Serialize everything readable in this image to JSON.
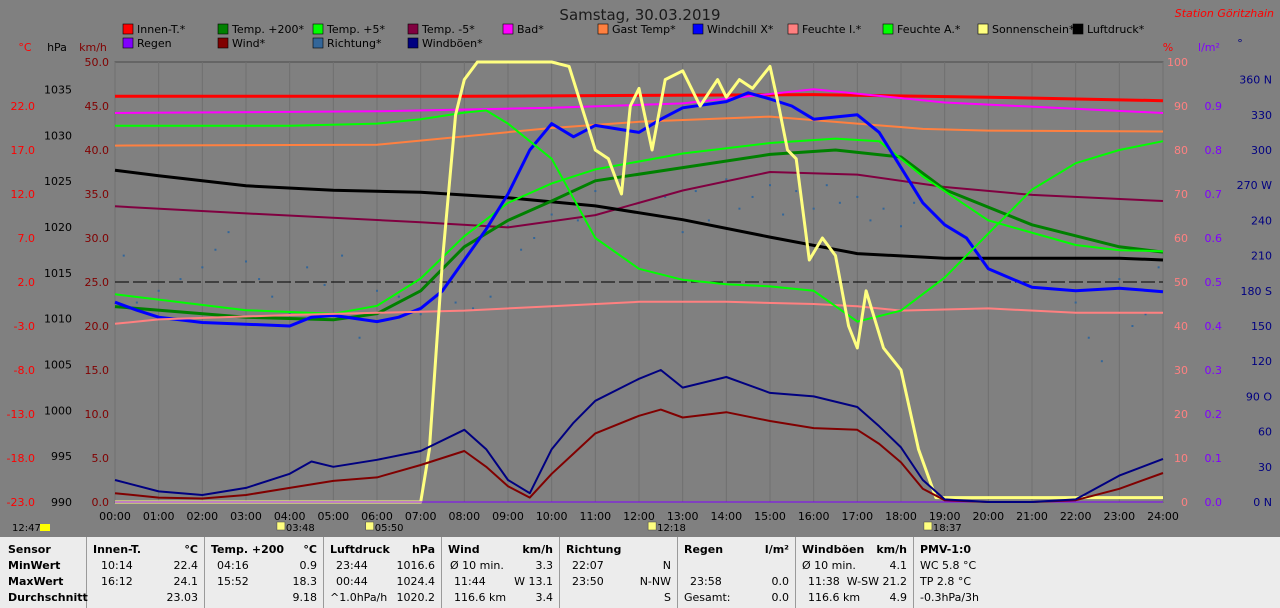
{
  "title": "Samstag, 30.03.2019",
  "station": "Station Göritzhain",
  "legend": [
    {
      "label": "Innen-T.*",
      "color": "#ff0000"
    },
    {
      "label": "Temp. +200*",
      "color": "#008000"
    },
    {
      "label": "Temp. +5*",
      "color": "#00ff00"
    },
    {
      "label": "Temp. -5*",
      "color": "#800040"
    },
    {
      "label": "Bad*",
      "color": "#ff00ff"
    },
    {
      "label": "Gast Temp*",
      "color": "#ff8040"
    },
    {
      "label": "Windchill X*",
      "color": "#0000ff"
    },
    {
      "label": "Feuchte I.*",
      "color": "#ff8080"
    },
    {
      "label": "Feuchte A.*",
      "color": "#00ff00"
    },
    {
      "label": "Sonnenschein*",
      "color": "#ffff80"
    },
    {
      "label": "Luftdruck*",
      "color": "#000000"
    },
    {
      "label": "Regen",
      "color": "#8000ff"
    },
    {
      "label": "Wind*",
      "color": "#800000"
    },
    {
      "label": "Richtung*",
      "color": "#336699"
    },
    {
      "label": "Windböen*",
      "color": "#000080"
    }
  ],
  "axis_units": {
    "temp": "°C",
    "pressure": "hPa",
    "speed": "km/h",
    "humidity": "%",
    "rain": "l/m²",
    "direction": "°"
  },
  "sun_times": [
    {
      "time": "03:48"
    },
    {
      "time": "05:50"
    },
    {
      "time": "12:18"
    },
    {
      "time": "18:37"
    }
  ],
  "clock": "12:47",
  "colors": {
    "background": "#808080",
    "plot": "#808080",
    "sun": "#ffff80",
    "panel": "#ececec"
  },
  "chart_data": {
    "type": "line",
    "title": "Samstag, 30.03.2019",
    "x_ticks": [
      "00:00",
      "01:00",
      "02:00",
      "03:00",
      "04:00",
      "05:00",
      "06:00",
      "07:00",
      "08:00",
      "09:00",
      "10:00",
      "11:00",
      "12:00",
      "13:00",
      "14:00",
      "15:00",
      "16:00",
      "17:00",
      "18:00",
      "19:00",
      "20:00",
      "21:00",
      "22:00",
      "23:00",
      "24:00"
    ],
    "xlim": [
      0,
      24
    ],
    "y_axes": {
      "temp": {
        "unit": "°C",
        "lim": [
          -23,
          27
        ],
        "ticks": [
          "22.0",
          "17.0",
          "12.0",
          "7.0",
          "2.0",
          "-3.0",
          "-8.0",
          "-13.0",
          "-18.0",
          "-23.0"
        ]
      },
      "pressure": {
        "unit": "hPa",
        "lim": [
          990,
          1038
        ],
        "ticks": [
          "1035",
          "1030",
          "1025",
          "1020",
          "1015",
          "1010",
          "1005",
          "1000",
          "995",
          "990"
        ]
      },
      "speed": {
        "unit": "km/h",
        "lim": [
          0,
          50
        ],
        "ticks": [
          "50.0",
          "45.0",
          "40.0",
          "35.0",
          "30.0",
          "25.0",
          "20.0",
          "15.0",
          "10.0",
          "5.0",
          "0.0"
        ]
      },
      "humidity": {
        "unit": "%",
        "lim": [
          0,
          100
        ],
        "ticks": [
          "100",
          "90",
          "80",
          "70",
          "60",
          "50",
          "40",
          "30",
          "20",
          "10",
          "0"
        ]
      },
      "rain": {
        "unit": "l/m²",
        "lim": [
          0,
          1
        ],
        "ticks": [
          "0.9",
          "0.8",
          "0.7",
          "0.6",
          "0.5",
          "0.4",
          "0.3",
          "0.2",
          "0.1",
          "0.0"
        ]
      },
      "direction": {
        "unit": "°",
        "lim": [
          0,
          375
        ],
        "ticks": [
          "360 N",
          "330",
          "300",
          "270 W",
          "240",
          "210",
          "180 S",
          "150",
          "120",
          "90 O",
          "60",
          "30",
          "0 N"
        ]
      }
    },
    "series": [
      {
        "name": "Innen-T.*",
        "axis": "temp",
        "color": "#ff0000",
        "width": 3,
        "x": [
          0,
          4,
          8,
          12,
          16,
          20,
          24
        ],
        "y": [
          23.1,
          23.1,
          23.1,
          23.2,
          23.3,
          23.0,
          22.6
        ]
      },
      {
        "name": "Bad*",
        "axis": "temp",
        "color": "#ff00ff",
        "width": 2,
        "x": [
          0,
          6,
          10,
          13,
          16,
          19,
          24
        ],
        "y": [
          21.2,
          21.4,
          21.8,
          22.3,
          23.9,
          22.4,
          21.2
        ]
      },
      {
        "name": "Gast Temp*",
        "axis": "temp",
        "color": "#ff8040",
        "width": 2,
        "x": [
          0,
          6,
          10,
          12,
          15,
          17,
          18.5,
          20,
          24
        ],
        "y": [
          17.5,
          17.6,
          19.5,
          20.2,
          20.8,
          20.0,
          19.4,
          19.2,
          19.1
        ]
      },
      {
        "name": "Temp. -5*",
        "axis": "temp",
        "color": "#800040",
        "width": 2,
        "x": [
          0,
          3,
          7,
          9,
          11,
          13,
          15,
          17,
          19,
          21,
          24
        ],
        "y": [
          10.6,
          9.8,
          8.8,
          8.2,
          9.6,
          12.4,
          14.5,
          14.2,
          12.8,
          11.9,
          11.2
        ]
      },
      {
        "name": "Luftdruck*",
        "axis": "pressure",
        "color": "#000000",
        "width": 3,
        "x": [
          0,
          1,
          3,
          5,
          7,
          9,
          11,
          13,
          15,
          17,
          19,
          21,
          23,
          24
        ],
        "y": [
          1026.2,
          1025.6,
          1024.5,
          1024.0,
          1023.8,
          1023.2,
          1022.3,
          1020.8,
          1018.9,
          1017.1,
          1016.6,
          1016.6,
          1016.6,
          1016.4
        ]
      },
      {
        "name": "Temp. +200*",
        "axis": "temp",
        "color": "#008000",
        "width": 3,
        "x": [
          0,
          3,
          5,
          6,
          7,
          8,
          9,
          10,
          11,
          13,
          15,
          16.5,
          18,
          19,
          21,
          23,
          24
        ],
        "y": [
          -0.8,
          -2.0,
          -2.3,
          -1.6,
          1.0,
          6.0,
          9.0,
          11.2,
          13.5,
          15.0,
          16.5,
          17.0,
          16.2,
          12.5,
          8.5,
          6.0,
          5.4
        ]
      },
      {
        "name": "Temp. +5*",
        "axis": "temp",
        "color": "#00ff00",
        "width": 2,
        "x": [
          0,
          3,
          5,
          6,
          7,
          8,
          9,
          10,
          11,
          13,
          15,
          16.5,
          17.5,
          18.5,
          20,
          22,
          23,
          24
        ],
        "y": [
          0.6,
          -1.2,
          -1.6,
          -0.7,
          2.4,
          7.2,
          11.0,
          13.2,
          14.8,
          16.6,
          17.8,
          18.3,
          18.0,
          14.0,
          9.0,
          6.2,
          5.6,
          5.5
        ]
      },
      {
        "name": "Windchill X*",
        "axis": "temp",
        "color": "#0000ff",
        "width": 3,
        "x": [
          0,
          0.5,
          1,
          2,
          3,
          4,
          4.5,
          5,
          6,
          6.5,
          7,
          7.5,
          8,
          8.5,
          9,
          9.5,
          10,
          10.5,
          11,
          12,
          12.5,
          13,
          14,
          14.5,
          15,
          15.5,
          16,
          17,
          17.5,
          18,
          18.5,
          19,
          19.5,
          20,
          21,
          22,
          23,
          24
        ],
        "y": [
          -0.3,
          -1.2,
          -2.0,
          -2.6,
          -2.8,
          -3.0,
          -2.0,
          -1.8,
          -2.5,
          -2.0,
          -1.0,
          1.0,
          4.5,
          8.0,
          12.0,
          17.0,
          20.0,
          18.5,
          19.8,
          19.0,
          20.5,
          21.8,
          22.5,
          23.5,
          22.8,
          22.0,
          20.5,
          21.0,
          19.0,
          15.0,
          11.0,
          8.5,
          7.0,
          3.5,
          1.4,
          1.0,
          1.3,
          0.9
        ]
      },
      {
        "name": "Feuchte I.*",
        "axis": "humidity",
        "color": "#ff8080",
        "width": 2,
        "x": [
          0,
          1,
          4,
          6,
          8,
          10,
          12,
          14,
          16,
          17,
          18,
          20,
          22,
          23,
          24
        ],
        "y": [
          40.5,
          41.5,
          42.5,
          43.0,
          43.5,
          44.5,
          45.5,
          45.5,
          45.0,
          44.5,
          43.5,
          44.0,
          43.0,
          43.0,
          43.0
        ]
      },
      {
        "name": "Feuchte A.*",
        "axis": "humidity",
        "color": "#00ff00",
        "width": 2,
        "x": [
          0,
          4,
          6,
          7,
          8,
          8.5,
          9,
          10,
          11,
          12,
          13,
          14,
          15,
          16,
          17,
          18,
          19,
          20,
          21,
          22,
          23,
          24
        ],
        "y": [
          85.5,
          85.5,
          86.0,
          87.0,
          88.5,
          89.0,
          86.0,
          78.0,
          60.0,
          53.0,
          50.5,
          49.5,
          49.0,
          48.0,
          41.0,
          43.5,
          51.0,
          61.0,
          71.0,
          77.0,
          80.0,
          82.0
        ]
      },
      {
        "name": "Sonnenschein*",
        "axis": "humidity",
        "color": "#ffff80",
        "width": 3,
        "x": [
          0,
          7.0,
          7.2,
          7.5,
          7.8,
          8.0,
          8.3,
          10,
          10.4,
          11.0,
          11.3,
          11.6,
          11.8,
          12.0,
          12.3,
          12.6,
          13.0,
          13.4,
          13.8,
          14.0,
          14.3,
          14.6,
          15.0,
          15.2,
          15.4,
          15.6,
          15.9,
          16.2,
          16.5,
          16.8,
          17.0,
          17.2,
          17.6,
          18.0,
          18.4,
          18.8,
          24
        ],
        "y": [
          0,
          0,
          12,
          55,
          88,
          96,
          100,
          100,
          99,
          80,
          78,
          70,
          90,
          94,
          80,
          96,
          98,
          90,
          96,
          92,
          96,
          94,
          99,
          90,
          80,
          78,
          55,
          60,
          56,
          40,
          35,
          48,
          35,
          30,
          12,
          1,
          1
        ]
      },
      {
        "name": "Regen",
        "axis": "rain",
        "color": "#8000ff",
        "width": 1,
        "x": [
          0,
          24
        ],
        "y": [
          0,
          0
        ]
      },
      {
        "name": "Wind*",
        "axis": "speed",
        "color": "#800000",
        "width": 2,
        "x": [
          0,
          1,
          2,
          3,
          4,
          4.5,
          5,
          6,
          7,
          8,
          8.5,
          9,
          9.5,
          10,
          10.5,
          11,
          12,
          12.5,
          13,
          14,
          15,
          16,
          17,
          17.5,
          18,
          18.5,
          19,
          20,
          21,
          22,
          23,
          24
        ],
        "y": [
          1,
          0.5,
          0.4,
          0.8,
          1.6,
          2.0,
          2.4,
          2.8,
          4.2,
          5.8,
          4.0,
          1.8,
          0.5,
          3.2,
          5.5,
          7.8,
          9.8,
          10.5,
          9.6,
          10.2,
          9.2,
          8.4,
          8.2,
          6.6,
          4.5,
          1.5,
          0.2,
          0.0,
          0.0,
          0.2,
          1.5,
          3.3
        ]
      },
      {
        "name": "Windböen*",
        "axis": "speed",
        "color": "#000080",
        "width": 2,
        "x": [
          0,
          1,
          2,
          3,
          4,
          4.5,
          5,
          6,
          7,
          8,
          8.5,
          9,
          9.5,
          10,
          10.5,
          11,
          12,
          12.5,
          13,
          14,
          15,
          16,
          17,
          17.5,
          18,
          18.5,
          19,
          20,
          21,
          22,
          23,
          24
        ],
        "y": [
          2.5,
          1.2,
          0.8,
          1.6,
          3.2,
          4.6,
          4.0,
          4.8,
          5.8,
          8.2,
          6.0,
          2.5,
          1.0,
          6.0,
          9.0,
          11.5,
          14.0,
          15.0,
          13.0,
          14.2,
          12.4,
          12.0,
          10.8,
          8.6,
          6.2,
          2.5,
          0.3,
          0.0,
          0.0,
          0.3,
          3.0,
          4.9
        ]
      }
    ],
    "scatter": {
      "name": "Richtung*",
      "axis": "direction",
      "color": "#336699",
      "x": [
        0.2,
        0.5,
        1.0,
        1.5,
        2.0,
        2.3,
        2.6,
        3.0,
        3.3,
        3.6,
        4.0,
        4.4,
        4.8,
        5.2,
        5.6,
        6.0,
        6.5,
        7.0,
        7.4,
        7.8,
        8.2,
        8.6,
        9.0,
        9.3,
        9.6,
        10.0,
        10.3,
        10.6,
        11.0,
        11.3,
        11.6,
        12.0,
        12.3,
        12.6,
        13.0,
        13.3,
        13.6,
        14.0,
        14.3,
        14.6,
        15.0,
        15.3,
        15.6,
        16.0,
        16.3,
        16.6,
        17.0,
        17.3,
        17.6,
        18.0,
        18.3,
        22.0,
        22.3,
        22.6,
        23.0,
        23.3,
        23.6,
        23.9
      ],
      "y": [
        210,
        170,
        180,
        190,
        200,
        215,
        230,
        205,
        190,
        175,
        160,
        200,
        185,
        210,
        140,
        180,
        175,
        160,
        155,
        170,
        165,
        175,
        235,
        215,
        225,
        245,
        255,
        240,
        265,
        250,
        270,
        255,
        245,
        260,
        230,
        265,
        240,
        275,
        250,
        260,
        270,
        245,
        265,
        250,
        270,
        255,
        260,
        240,
        250,
        235,
        255,
        170,
        140,
        120,
        190,
        150,
        160,
        200
      ]
    }
  },
  "stats": {
    "headers": {
      "sensor": "Sensor",
      "min": "MinWert",
      "max": "MaxWert",
      "avg": "Durchschnitt"
    },
    "innen": {
      "title": "Innen-T.",
      "unit": "°C",
      "min_time": "10:14",
      "min_val": "22.4",
      "max_time": "16:12",
      "max_val": "24.1",
      "avg": "23.03"
    },
    "temp200": {
      "title": "Temp. +200",
      "unit": "°C",
      "min_time": "04:16",
      "min_val": "0.9",
      "max_time": "15:52",
      "max_val": "18.3",
      "avg": "9.18"
    },
    "luftdruck": {
      "title": "Luftdruck",
      "unit": "hPa",
      "min_time": "23:44",
      "min_val": "1016.6",
      "max_time": "00:44",
      "max_val": "1024.4",
      "avg_label": "^1.0hPa/h",
      "avg": "1020.2"
    },
    "wind": {
      "title": "Wind",
      "unit": "km/h",
      "r1_label": "Ø 10 min.",
      "r1_val": "3.3",
      "r2_time": "11:44",
      "r2_val": "W 13.1",
      "r3_label": "116.6 km",
      "r3_val": "3.4"
    },
    "richtung": {
      "title": "Richtung",
      "r1_time": "22:07",
      "r1_val": "N",
      "r2_time": "23:50",
      "r2_val": "N-NW",
      "r3_val": "S"
    },
    "regen": {
      "title": "Regen",
      "unit": "l/m²",
      "r2_time": "23:58",
      "r2_val": "0.0",
      "r3_label": "Gesamt:",
      "r3_val": "0.0"
    },
    "boeen": {
      "title": "Windböen",
      "unit": "km/h",
      "r1_label": "Ø 10 min.",
      "r1_val": "4.1",
      "r2_time": "11:38",
      "r2_val": "W-SW 21.2",
      "r3_label": "116.6 km",
      "r3_val": "4.9"
    },
    "pmv": {
      "title": "PMV-1:0",
      "r1": "WC 5.8 °C",
      "r2": "TP 2.8 °C",
      "r3": "-0.3hPa/3h"
    }
  }
}
